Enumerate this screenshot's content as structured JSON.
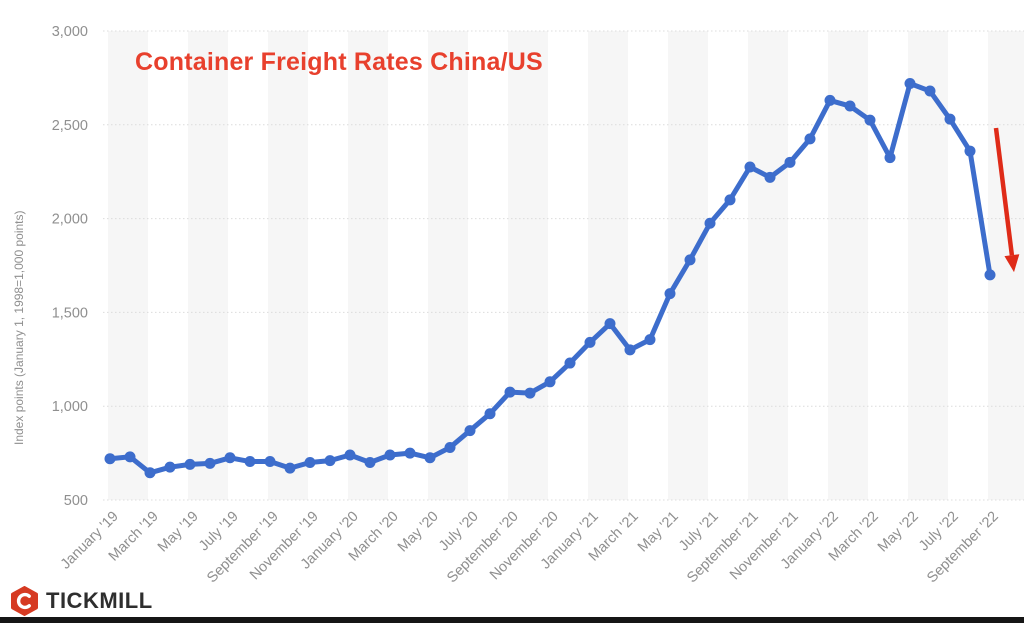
{
  "branding": {
    "logo_text": "TICKMILL"
  },
  "chart_data": {
    "type": "line",
    "title": "Container Freight Rates China/US",
    "ylabel": "Index points (January 1, 1998=1,000 points)",
    "xlabel": "",
    "ylim": [
      500,
      3000
    ],
    "yticks": [
      500,
      1000,
      1500,
      2000,
      2500,
      3000
    ],
    "x_tick_every": 2,
    "grid": "horizontal-dotted",
    "legend_position": "none",
    "categories": [
      "January '19",
      "February '19",
      "March '19",
      "April '19",
      "May '19",
      "June '19",
      "July '19",
      "August '19",
      "September '19",
      "October '19",
      "November '19",
      "December '19",
      "January '20",
      "February '20",
      "March '20",
      "April '20",
      "May '20",
      "June '20",
      "July '20",
      "August '20",
      "September '20",
      "October '20",
      "November '20",
      "December '20",
      "January '21",
      "February '21",
      "March '21",
      "April '21",
      "May '21",
      "June '21",
      "July '21",
      "August '21",
      "September '21",
      "October '21",
      "November '21",
      "December '21",
      "January '22",
      "February '22",
      "March '22",
      "April '22",
      "May '22",
      "June '22",
      "July '22",
      "August '22",
      "September '22"
    ],
    "values": [
      720,
      730,
      645,
      675,
      690,
      695,
      725,
      705,
      705,
      670,
      700,
      710,
      740,
      700,
      740,
      750,
      725,
      780,
      870,
      960,
      1075,
      1070,
      1130,
      1230,
      1340,
      1440,
      1300,
      1355,
      1600,
      1780,
      1975,
      2100,
      2275,
      2220,
      2300,
      2425,
      2630,
      2600,
      2525,
      2325,
      2720,
      2680,
      2530,
      2360,
      1700
    ],
    "annotation": {
      "type": "arrow",
      "direction": "down",
      "from_value": 2483,
      "to_value": 1715,
      "color": "#df2b18"
    },
    "colors": {
      "title": "#e8402d",
      "line": "#3d6dcc",
      "grid": "#dcdcdc",
      "stripe": "#f6f6f6",
      "tick_label": "#8f8f8f",
      "logo_red": "#d63a22",
      "bottom_bar": "#161616"
    }
  }
}
